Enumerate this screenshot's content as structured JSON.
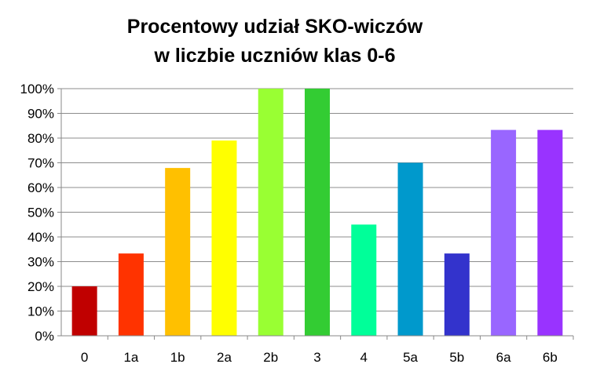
{
  "chart_data": {
    "type": "bar",
    "title_lines": [
      "Procentowy udział SKO-wiczów",
      "w liczbie uczniów klas 0-6"
    ],
    "categories": [
      "0",
      "1a",
      "1b",
      "2a",
      "2b",
      "3",
      "4",
      "5a",
      "5b",
      "6a",
      "6b"
    ],
    "values": [
      20,
      33.3,
      67.9,
      79,
      100,
      100,
      45,
      70,
      33.3,
      83.3,
      83.3
    ],
    "colors": [
      "#C00000",
      "#FF3300",
      "#FFC000",
      "#FFFF00",
      "#99FF33",
      "#33CC33",
      "#00FF99",
      "#0099CC",
      "#3333CC",
      "#9966FF",
      "#9933FF"
    ],
    "ylim": [
      0,
      100
    ],
    "y_ticks": [
      "0%",
      "10%",
      "20%",
      "30%",
      "40%",
      "50%",
      "60%",
      "70%",
      "80%",
      "90%",
      "100%"
    ],
    "xlabel": "",
    "ylabel": "",
    "grid": true,
    "legend": "none"
  }
}
